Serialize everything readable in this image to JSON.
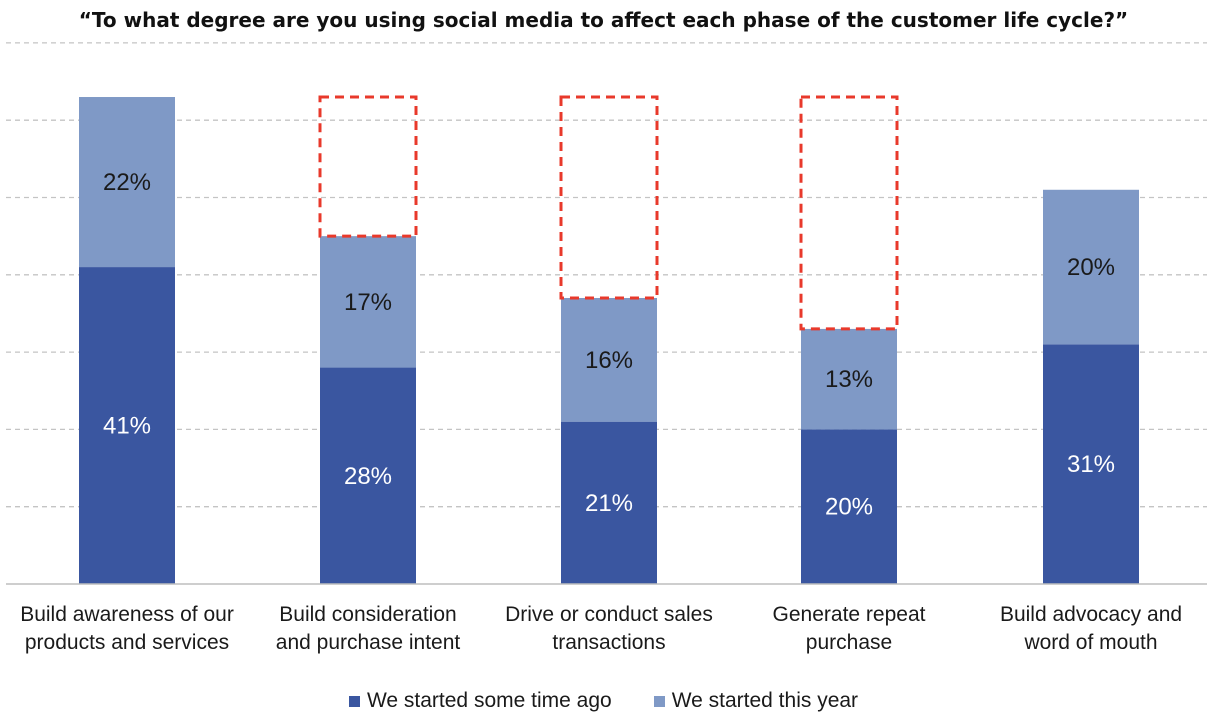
{
  "chart_data": {
    "type": "bar",
    "stacked": true,
    "title": "“To what degree are you using social media to affect each phase of the customer life cycle?”",
    "xlabel": "",
    "ylabel": "",
    "ylim": [
      0,
      70
    ],
    "grid": true,
    "legend_position": "bottom",
    "categories": [
      "Build awareness of our products and services",
      "Build consideration and purchase intent",
      "Drive or conduct sales transactions",
      "Generate repeat purchase",
      "Build advocacy and word of mouth"
    ],
    "category_lines": [
      [
        "Build awareness of our",
        "products and services"
      ],
      [
        "Build consideration",
        "and purchase intent"
      ],
      [
        "Drive or conduct sales",
        "transactions"
      ],
      [
        "Generate repeat",
        "purchase"
      ],
      [
        "Build advocacy and",
        "word of mouth"
      ]
    ],
    "series": [
      {
        "name": "We started some time ago",
        "color": "#3a56a0",
        "values": [
          41,
          28,
          21,
          20,
          31
        ],
        "labels": [
          "41%",
          "28%",
          "21%",
          "20%",
          "31%"
        ]
      },
      {
        "name": "We started this year",
        "color": "#7f99c6",
        "values": [
          22,
          17,
          16,
          13,
          20
        ],
        "labels": [
          "22%",
          "17%",
          "16%",
          "13%",
          "20%"
        ]
      }
    ],
    "highlight_gap": {
      "description": "dashed red outline up to the first bar's total",
      "color": "#e8392b",
      "categories": [
        1,
        2,
        3
      ],
      "target_total": 63
    }
  }
}
